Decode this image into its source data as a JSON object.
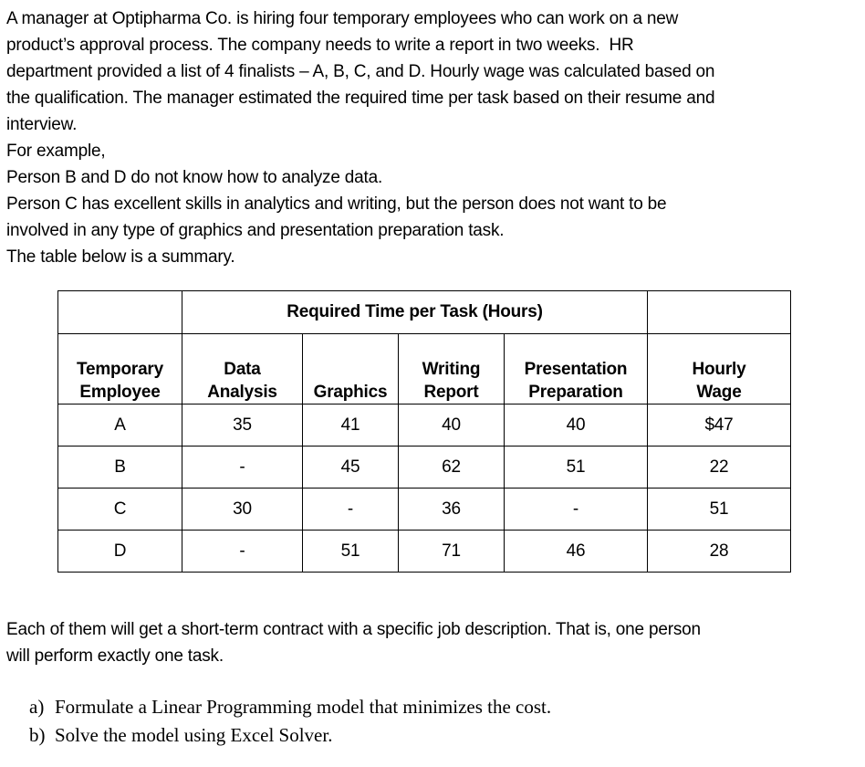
{
  "intro": {
    "lines": [
      "A manager at Optipharma Co. is hiring four temporary employees who can work on a new",
      "product’s approval process. The company needs to write a report in two weeks.  HR",
      "department provided a list of 4 finalists – A, B, C, and D. Hourly wage was calculated based on",
      "the qualification. The manager estimated the required time per task based on their resume and",
      "interview.",
      "For example,",
      "Person B and D do not know how to analyze data.",
      "Person C has excellent skills in analytics and writing, but the person does not want to be",
      "involved in any type of graphics and presentation preparation task.",
      "The table below is a summary."
    ]
  },
  "table": {
    "span_header": "Required Time per Task (Hours)",
    "columns": [
      "Temporary\nEmployee",
      "Data\nAnalysis",
      "Graphics",
      "Writing\nReport",
      "Presentation\nPreparation",
      "Hourly\nWage"
    ],
    "rows": [
      {
        "employee": "A",
        "cells": [
          "35",
          "41",
          "40",
          "40",
          "$47"
        ]
      },
      {
        "employee": "B",
        "cells": [
          "-",
          "45",
          "62",
          "51",
          "22"
        ]
      },
      {
        "employee": "C",
        "cells": [
          "30",
          "-",
          "36",
          "-",
          "51"
        ]
      },
      {
        "employee": "D",
        "cells": [
          "-",
          "51",
          "71",
          "46",
          "28"
        ]
      }
    ]
  },
  "closing": {
    "lines": [
      "Each of them will get a short-term contract with a specific job description. That is, one person",
      "will perform exactly one task."
    ]
  },
  "tasks": {
    "items": [
      {
        "marker": "a)",
        "text": "Formulate a Linear Programming model that minimizes the cost."
      },
      {
        "marker": "b)",
        "text": "Solve the model using Excel Solver."
      }
    ]
  }
}
